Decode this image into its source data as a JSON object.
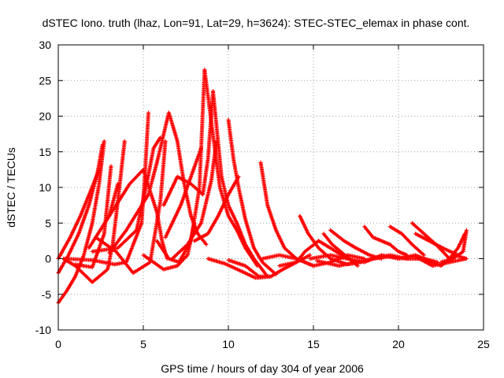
{
  "chart_data": {
    "type": "scatter",
    "title": "dSTEC Iono. truth (lhaz, Lon=91, Lat=29, h=3624): STEC-STEC_elemax in phase cont.",
    "xlabel": "GPS time / hours of day 304 of year 2006",
    "ylabel": "dSTEC  / TECUs",
    "xlim": [
      0,
      25
    ],
    "ylim": [
      -10,
      30
    ],
    "xticks": [
      "0",
      "5",
      "10",
      "15",
      "20",
      "25"
    ],
    "yticks": [
      "-10",
      "-5",
      "0",
      "5",
      "10",
      "15",
      "20",
      "25",
      "30"
    ],
    "grid": true,
    "marker": "+",
    "series_color": "#ff0000",
    "series": [
      {
        "x": [
          0.0,
          0.5,
          1.0,
          1.5,
          2.0,
          2.4,
          2.7
        ],
        "y": [
          -6.2,
          -4.5,
          -2.5,
          0.5,
          5.0,
          10.5,
          16.5
        ]
      },
      {
        "x": [
          0.0,
          0.6,
          1.2,
          1.8,
          2.3,
          2.6
        ],
        "y": [
          -2.0,
          0.5,
          3.5,
          7.5,
          12.0,
          16.0
        ]
      },
      {
        "x": [
          0.0,
          0.7,
          1.3,
          1.9,
          2.4
        ],
        "y": [
          0.0,
          3.0,
          6.0,
          9.5,
          12.5
        ]
      },
      {
        "x": [
          0.3,
          1.0,
          2.0,
          2.9,
          3.2,
          3.5,
          3.9
        ],
        "y": [
          0.0,
          -1.0,
          -3.3,
          -1.5,
          2.0,
          8.0,
          16.5
        ]
      },
      {
        "x": [
          1.0,
          2.0,
          2.7,
          3.1
        ],
        "y": [
          -0.8,
          -1.2,
          3.5,
          13.0
        ]
      },
      {
        "x": [
          1.8,
          2.6,
          3.0,
          3.5
        ],
        "y": [
          1.5,
          4.5,
          6.0,
          10.5
        ]
      },
      {
        "x": [
          0.4,
          2.0,
          3.3,
          4.0,
          4.9,
          5.1,
          5.3
        ],
        "y": [
          0.0,
          -0.2,
          -0.8,
          -0.5,
          5.0,
          12.0,
          20.5
        ]
      },
      {
        "x": [
          2.0,
          3.5,
          4.6,
          5.2,
          5.6,
          6.0
        ],
        "y": [
          1.0,
          1.5,
          4.0,
          10.5,
          15.5,
          17.0
        ]
      },
      {
        "x": [
          3.0,
          4.0,
          5.3,
          5.8,
          6.5
        ],
        "y": [
          0.8,
          4.0,
          9.0,
          13.5,
          20.5
        ]
      },
      {
        "x": [
          2.2,
          3.4,
          4.4,
          5.4,
          6.0,
          6.3
        ],
        "y": [
          3.0,
          1.0,
          -2.0,
          -0.5,
          8.0,
          16.5
        ]
      },
      {
        "x": [
          3.0,
          4.2,
          5.0,
          5.8,
          6.1,
          6.4
        ],
        "y": [
          6.0,
          10.5,
          12.5,
          6.5,
          2.5,
          0.0
        ]
      },
      {
        "x": [
          5.0,
          6.2,
          7.0,
          7.6,
          8.0
        ],
        "y": [
          0.5,
          -1.5,
          -1.0,
          0.5,
          5.0
        ]
      },
      {
        "x": [
          5.8,
          6.5,
          7.1,
          7.8,
          8.3,
          8.6
        ],
        "y": [
          2.5,
          0.0,
          -0.5,
          2.5,
          10.0,
          26.5
        ]
      },
      {
        "x": [
          6.3,
          7.2,
          7.8,
          8.4
        ],
        "y": [
          3.0,
          7.5,
          11.5,
          15.5
        ]
      },
      {
        "x": [
          6.7,
          7.6,
          8.4,
          9.0,
          9.3
        ],
        "y": [
          0.0,
          2.0,
          5.0,
          11.0,
          16.5
        ]
      },
      {
        "x": [
          6.2,
          7.0,
          7.8,
          8.5,
          8.8,
          9.1
        ],
        "y": [
          7.5,
          11.5,
          10.5,
          9.0,
          14.0,
          23.5
        ]
      },
      {
        "x": [
          8.6,
          9.5,
          10.0,
          10.5,
          11.0,
          11.7
        ],
        "y": [
          26.5,
          10.0,
          6.0,
          4.0,
          1.5,
          -1.0
        ]
      },
      {
        "x": [
          9.1,
          9.6,
          10.0,
          10.5,
          11.0,
          11.5,
          12.3
        ],
        "y": [
          23.5,
          11.5,
          7.5,
          5.0,
          2.0,
          0.0,
          -2.5
        ]
      },
      {
        "x": [
          10.0,
          10.3,
          10.6,
          11.0,
          11.5,
          12.0,
          12.8
        ],
        "y": [
          19.5,
          14.0,
          10.0,
          5.5,
          1.5,
          -0.5,
          -2.2
        ]
      },
      {
        "x": [
          6.5,
          7.0,
          7.4,
          7.8,
          8.2,
          8.7
        ],
        "y": [
          20.5,
          16.5,
          10.5,
          6.0,
          3.5,
          2.0
        ]
      },
      {
        "x": [
          8.0,
          8.8,
          9.4,
          10.0,
          10.6
        ],
        "y": [
          2.5,
          3.5,
          6.0,
          9.0,
          11.5
        ]
      },
      {
        "x": [
          8.8,
          9.8,
          10.8,
          11.6,
          12.5
        ],
        "y": [
          0.0,
          -0.7,
          -1.8,
          -2.7,
          -2.5
        ]
      },
      {
        "x": [
          10.0,
          11.0,
          11.8,
          12.5,
          13.2,
          14.0,
          14.8
        ],
        "y": [
          -0.2,
          -1.0,
          -2.5,
          -2.5,
          -1.5,
          -0.5,
          0.5
        ]
      },
      {
        "x": [
          11.9,
          12.3,
          12.8,
          13.3,
          14.0,
          15.0
        ],
        "y": [
          13.5,
          7.5,
          4.0,
          1.5,
          0.0,
          -1.0
        ]
      },
      {
        "x": [
          12.0,
          13.0,
          14.0,
          15.0,
          16.0,
          17.0,
          18.0
        ],
        "y": [
          0.0,
          0.5,
          0.0,
          -1.0,
          -0.5,
          0.5,
          0.0
        ]
      },
      {
        "x": [
          13.0,
          14.0,
          14.5,
          15.3,
          16.0,
          17.0
        ],
        "y": [
          -1.0,
          -0.5,
          1.0,
          2.5,
          1.5,
          0.0
        ]
      },
      {
        "x": [
          14.2,
          14.7,
          15.3,
          16.0,
          17.0,
          17.8
        ],
        "y": [
          6.0,
          3.5,
          1.5,
          0.0,
          -0.8,
          -0.5
        ]
      },
      {
        "x": [
          15.6,
          16.1,
          16.6,
          17.1,
          17.6
        ],
        "y": [
          3.5,
          2.0,
          1.0,
          0.0,
          -1.0
        ]
      },
      {
        "x": [
          16.0,
          16.8,
          17.5,
          18.3,
          19.0
        ],
        "y": [
          4.0,
          2.5,
          1.5,
          0.5,
          0.0
        ]
      },
      {
        "x": [
          14.8,
          16.0,
          17.0,
          18.0,
          19.0,
          20.0,
          21.0,
          22.0
        ],
        "y": [
          0.0,
          0.5,
          0.0,
          -0.5,
          0.5,
          0.0,
          0.5,
          -0.5
        ]
      },
      {
        "x": [
          15.2,
          16.5,
          17.5,
          18.5,
          19.5,
          20.5,
          21.5
        ],
        "y": [
          -0.3,
          -1.0,
          -0.5,
          0.0,
          0.3,
          0.0,
          0.0
        ]
      },
      {
        "x": [
          18.0,
          18.5,
          19.0,
          19.5,
          20.0,
          20.5
        ],
        "y": [
          4.5,
          3.0,
          2.5,
          2.0,
          1.0,
          0.5
        ]
      },
      {
        "x": [
          19.5,
          20.2,
          20.8,
          21.5
        ],
        "y": [
          4.5,
          3.5,
          2.0,
          0.5
        ]
      },
      {
        "x": [
          18.5,
          19.5,
          20.5,
          21.5,
          22.3
        ],
        "y": [
          0.0,
          0.5,
          0.0,
          0.0,
          -0.5
        ]
      },
      {
        "x": [
          20.8,
          21.5,
          22.2,
          23.0
        ],
        "y": [
          5.0,
          3.5,
          2.0,
          0.0
        ]
      },
      {
        "x": [
          21.0,
          21.8,
          22.6,
          23.5
        ],
        "y": [
          3.5,
          2.5,
          1.5,
          0.5
        ]
      },
      {
        "x": [
          20.0,
          21.0,
          22.0,
          23.0,
          24.0
        ],
        "y": [
          0.0,
          0.3,
          -1.0,
          -0.5,
          0.0
        ]
      },
      {
        "x": [
          21.5,
          22.5,
          23.3,
          24.0
        ],
        "y": [
          0.0,
          -1.0,
          0.5,
          0.0
        ]
      },
      {
        "x": [
          23.0,
          23.5,
          23.9
        ],
        "y": [
          0.0,
          1.5,
          3.5
        ]
      },
      {
        "x": [
          22.5,
          23.2,
          23.8,
          24.0
        ],
        "y": [
          -0.5,
          0.0,
          1.0,
          4.0
        ]
      }
    ]
  }
}
